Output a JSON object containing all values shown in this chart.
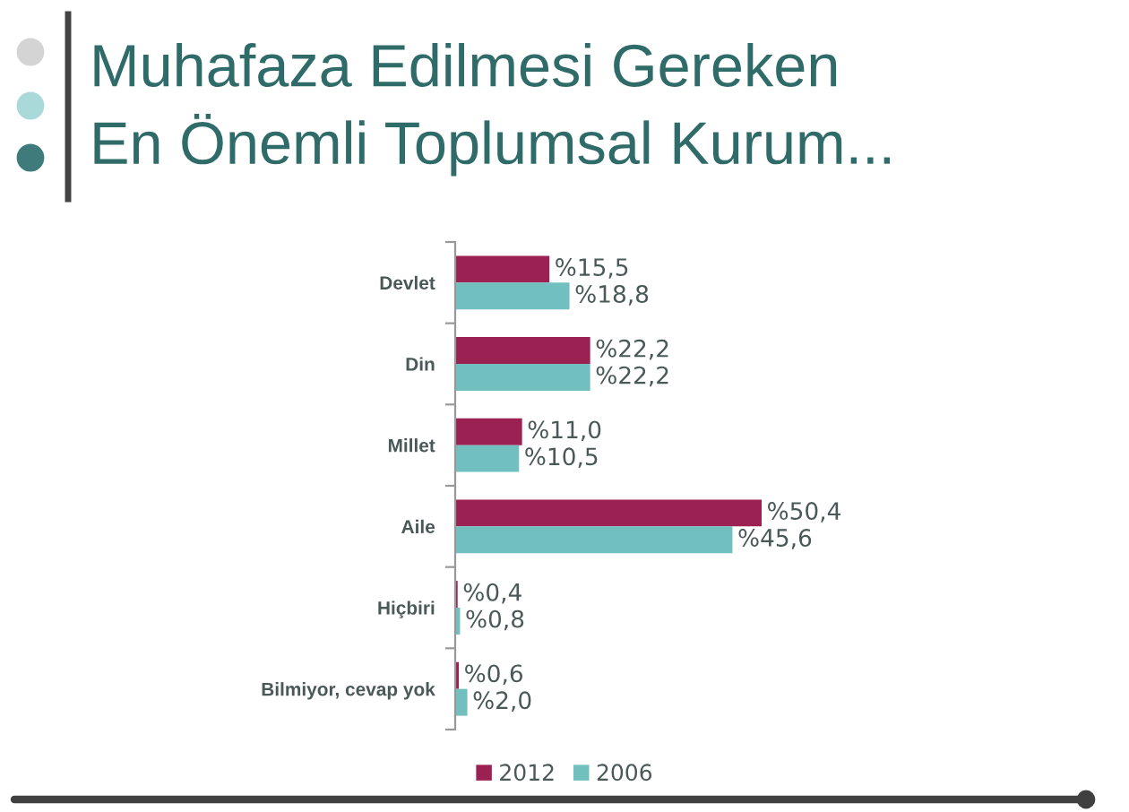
{
  "chart_data": {
    "type": "bar",
    "orientation": "horizontal",
    "title": "Muhafaza Edilmesi Gereken\nEn Önemli Toplumsal Kurum...",
    "categories": [
      "Devlet",
      "Din",
      "Millet",
      "Aile",
      "Hiçbiri",
      "Bilmiyor, cevap yok"
    ],
    "series": [
      {
        "name": "2012",
        "color": "#9b2153",
        "values": [
          15.5,
          22.2,
          11.0,
          50.4,
          0.4,
          0.6
        ],
        "value_labels": [
          "%15,5",
          "%22,2",
          "%11,0",
          "%50,4",
          "%0,4",
          "%0,6"
        ]
      },
      {
        "name": "2006",
        "color": "#72bfc0",
        "values": [
          18.8,
          22.2,
          10.5,
          45.6,
          0.8,
          2.0
        ],
        "value_labels": [
          "%18,8",
          "%22,2",
          "%10,5",
          "%45,6",
          "%0,8",
          "%2,0"
        ]
      }
    ],
    "legend": "bottom",
    "tick_labels": "y"
  }
}
